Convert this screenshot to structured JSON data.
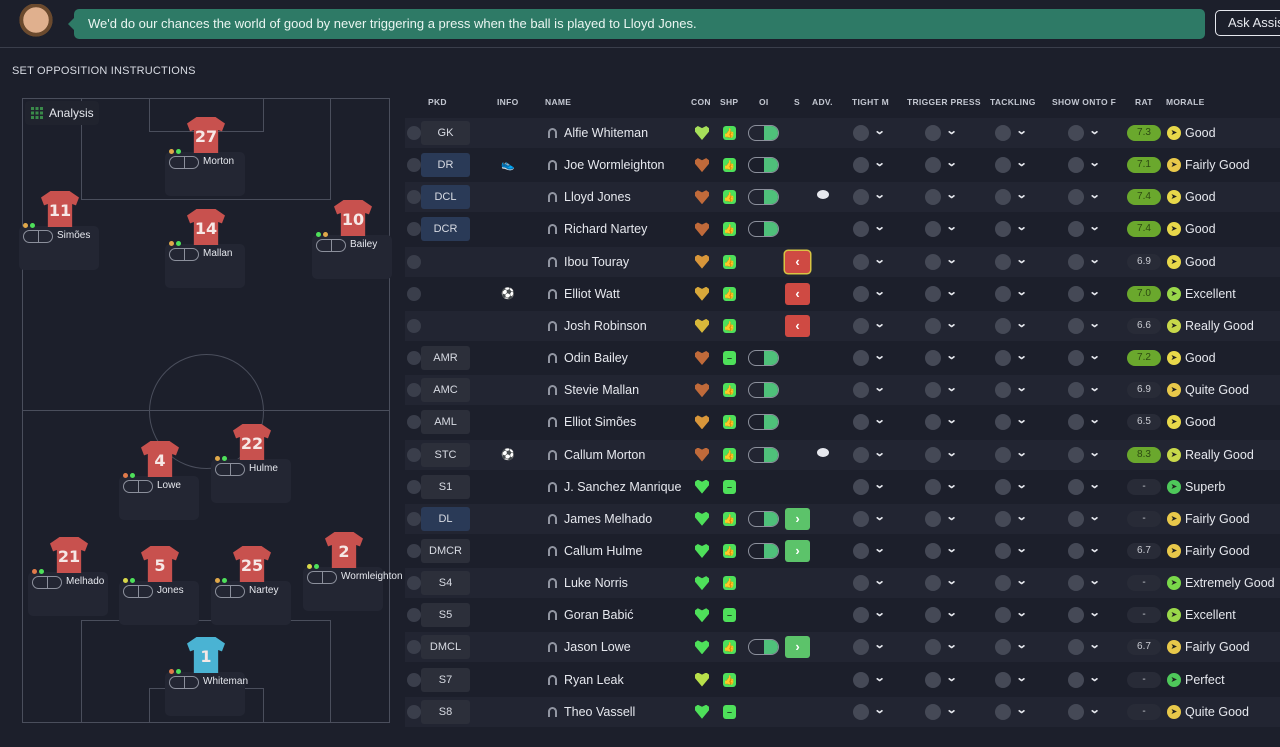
{
  "header": {
    "assistant_message": "We'd do our chances the world of good by never triggering a press when the ball is played to Lloyd Jones.",
    "ask_button": "Ask Assistant"
  },
  "section_title": "SET OPPOSITION INSTRUCTIONS",
  "pitch": {
    "analysis_label": "Analysis",
    "players": [
      {
        "name": "Morton",
        "number": "27",
        "dots": [
          "#e0a84a",
          "#4ee05a"
        ]
      },
      {
        "name": "Simões",
        "number": "11",
        "dots": [
          "#e0a84a",
          "#4ee05a"
        ]
      },
      {
        "name": "Mallan",
        "number": "14",
        "dots": [
          "#e0a84a",
          "#4ee05a"
        ]
      },
      {
        "name": "Bailey",
        "number": "10",
        "dots": [
          "#4ee05a",
          "#e0a84a"
        ]
      },
      {
        "name": "Lowe",
        "number": "4",
        "dots": [
          "#e07a4a",
          "#4ee05a"
        ]
      },
      {
        "name": "Hulme",
        "number": "22",
        "dots": [
          "#e0a84a",
          "#4ee05a"
        ]
      },
      {
        "name": "Melhado",
        "number": "21",
        "dots": [
          "#e07a4a",
          "#4ee05a"
        ]
      },
      {
        "name": "Jones",
        "number": "5",
        "dots": [
          "#d8d84a",
          "#4ee05a"
        ]
      },
      {
        "name": "Nartey",
        "number": "25",
        "dots": [
          "#e0a84a",
          "#4ee05a"
        ]
      },
      {
        "name": "Wormleighton",
        "number": "2",
        "dots": [
          "#d8d84a",
          "#4ee05a"
        ]
      },
      {
        "name": "Whiteman",
        "number": "1",
        "dots": [
          "#e07a4a",
          "#4ee05a"
        ],
        "gk": true
      }
    ]
  },
  "table": {
    "columns": [
      "PKD",
      "INFO",
      "NAME",
      "CON",
      "SHP",
      "OI",
      "S",
      "ADV.",
      "TIGHT M",
      "TRIGGER PRESS",
      "TACKLING",
      "SHOW ONTO F",
      "RAT",
      "MORALE"
    ],
    "rows": [
      {
        "pkd": "GK",
        "name": "Alfie Whiteman",
        "con": "#a6e05a",
        "shp": "thumb",
        "oi": true,
        "rat": "7.3",
        "rat_hi": true,
        "morale": "Good",
        "mcol": "#e8d84a"
      },
      {
        "pkd": "DR",
        "info": "boot",
        "name": "Joe Wormleighton",
        "con": "#c06a3a",
        "shp": "thumb",
        "oi": true,
        "rat": "7.1",
        "rat_hi": true,
        "morale": "Fairly Good",
        "mcol": "#e8c84a"
      },
      {
        "pkd": "DCL",
        "name": "Lloyd Jones",
        "con": "#c06a3a",
        "shp": "thumb",
        "oi": true,
        "adv": true,
        "rat": "7.4",
        "rat_hi": true,
        "morale": "Good",
        "mcol": "#e8d84a"
      },
      {
        "pkd": "DCR",
        "name": "Richard Nartey",
        "con": "#c06a3a",
        "shp": "thumb",
        "oi": true,
        "rat": "7.4",
        "rat_hi": true,
        "morale": "Good",
        "mcol": "#e8d84a"
      },
      {
        "pkd": "",
        "name": "Ibou Touray",
        "con": "#d8963a",
        "shp": "thumb",
        "s": "red-hl",
        "rat": "6.9",
        "morale": "Good",
        "mcol": "#e8d84a"
      },
      {
        "pkd": "",
        "info": "ball",
        "name": "Elliot Watt",
        "con": "#d8a83a",
        "shp": "thumb",
        "s": "red",
        "rat": "7.0",
        "rat_hi": true,
        "morale": "Excellent",
        "mcol": "#9ad84a"
      },
      {
        "pkd": "",
        "name": "Josh Robinson",
        "con": "#d8b83a",
        "shp": "thumb",
        "s": "red",
        "rat": "6.6",
        "morale": "Really Good",
        "mcol": "#c8d84a"
      },
      {
        "pkd": "AMR",
        "name": "Odin Bailey",
        "con": "#c06a3a",
        "shp": "minus",
        "oi": true,
        "rat": "7.2",
        "rat_hi": true,
        "morale": "Good",
        "mcol": "#e8d84a"
      },
      {
        "pkd": "AMC",
        "name": "Stevie Mallan",
        "con": "#c06a3a",
        "shp": "thumb",
        "oi": true,
        "rat": "6.9",
        "morale": "Quite Good",
        "mcol": "#e8c84a"
      },
      {
        "pkd": "AML",
        "name": "Elliot Simões",
        "con": "#d8963a",
        "shp": "thumb",
        "oi": true,
        "rat": "6.5",
        "morale": "Good",
        "mcol": "#e8d84a"
      },
      {
        "pkd": "STC",
        "info": "ball",
        "name": "Callum Morton",
        "con": "#c06a3a",
        "shp": "thumb",
        "oi": true,
        "adv": true,
        "rat": "8.3",
        "rat_hi": true,
        "morale": "Really Good",
        "mcol": "#c8d84a"
      },
      {
        "pkd": "S1",
        "name": "J. Sanchez Manrique",
        "con": "#4ee05a",
        "shp": "minus",
        "rat": "-",
        "morale": "Superb",
        "mcol": "#4ec85a"
      },
      {
        "pkd": "DL",
        "name": "James Melhado",
        "con": "#4ee05a",
        "shp": "thumb",
        "oi": true,
        "s": "green",
        "rat": "-",
        "morale": "Fairly Good",
        "mcol": "#e8c84a"
      },
      {
        "pkd": "DMCR",
        "name": "Callum Hulme",
        "con": "#4ee05a",
        "shp": "thumb",
        "oi": true,
        "s": "green",
        "rat": "6.7",
        "morale": "Fairly Good",
        "mcol": "#e8c84a"
      },
      {
        "pkd": "S4",
        "name": "Luke Norris",
        "con": "#4ee05a",
        "shp": "thumb",
        "rat": "-",
        "morale": "Extremely Good",
        "mcol": "#7ad84a"
      },
      {
        "pkd": "S5",
        "name": "Goran Babić",
        "con": "#4ee05a",
        "shp": "minus",
        "rat": "-",
        "morale": "Excellent",
        "mcol": "#9ad84a"
      },
      {
        "pkd": "DMCL",
        "name": "Jason Lowe",
        "con": "#4ee05a",
        "shp": "thumb",
        "oi": true,
        "s": "green",
        "rat": "6.7",
        "morale": "Fairly Good",
        "mcol": "#e8c84a"
      },
      {
        "pkd": "S7",
        "name": "Ryan Leak",
        "con": "#b8e04a",
        "shp": "thumb",
        "rat": "-",
        "morale": "Perfect",
        "mcol": "#4ec85a"
      },
      {
        "pkd": "S8",
        "name": "Theo Vassell",
        "con": "#4ee05a",
        "shp": "minus",
        "rat": "-",
        "morale": "Quite Good",
        "mcol": "#e8c84a"
      }
    ]
  }
}
